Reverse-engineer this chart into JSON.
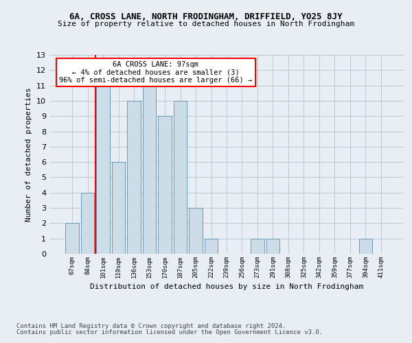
{
  "title1": "6A, CROSS LANE, NORTH FRODINGHAM, DRIFFIELD, YO25 8JY",
  "title2": "Size of property relative to detached houses in North Frodingham",
  "xlabel": "Distribution of detached houses by size in North Frodingham",
  "ylabel": "Number of detached properties",
  "footnote1": "Contains HM Land Registry data © Crown copyright and database right 2024.",
  "footnote2": "Contains public sector information licensed under the Open Government Licence v3.0.",
  "annotation_line1": "6A CROSS LANE: 97sqm",
  "annotation_line2": "← 4% of detached houses are smaller (3)",
  "annotation_line3": "96% of semi-detached houses are larger (66) →",
  "bar_labels": [
    "67sqm",
    "84sqm",
    "101sqm",
    "119sqm",
    "136sqm",
    "153sqm",
    "170sqm",
    "187sqm",
    "205sqm",
    "222sqm",
    "239sqm",
    "256sqm",
    "273sqm",
    "291sqm",
    "308sqm",
    "325sqm",
    "342sqm",
    "359sqm",
    "377sqm",
    "394sqm",
    "411sqm"
  ],
  "bar_values": [
    2,
    4,
    11,
    6,
    10,
    11,
    9,
    10,
    3,
    1,
    0,
    0,
    1,
    1,
    0,
    0,
    0,
    0,
    0,
    1,
    0
  ],
  "bar_color": "#ccdde8",
  "bar_edge_color": "#6699bb",
  "red_line_x": 1.5,
  "ylim": [
    0,
    13
  ],
  "yticks": [
    0,
    1,
    2,
    3,
    4,
    5,
    6,
    7,
    8,
    9,
    10,
    11,
    12,
    13
  ],
  "annotation_box_color": "white",
  "annotation_box_edge": "red",
  "bg_color": "#e8eef4"
}
